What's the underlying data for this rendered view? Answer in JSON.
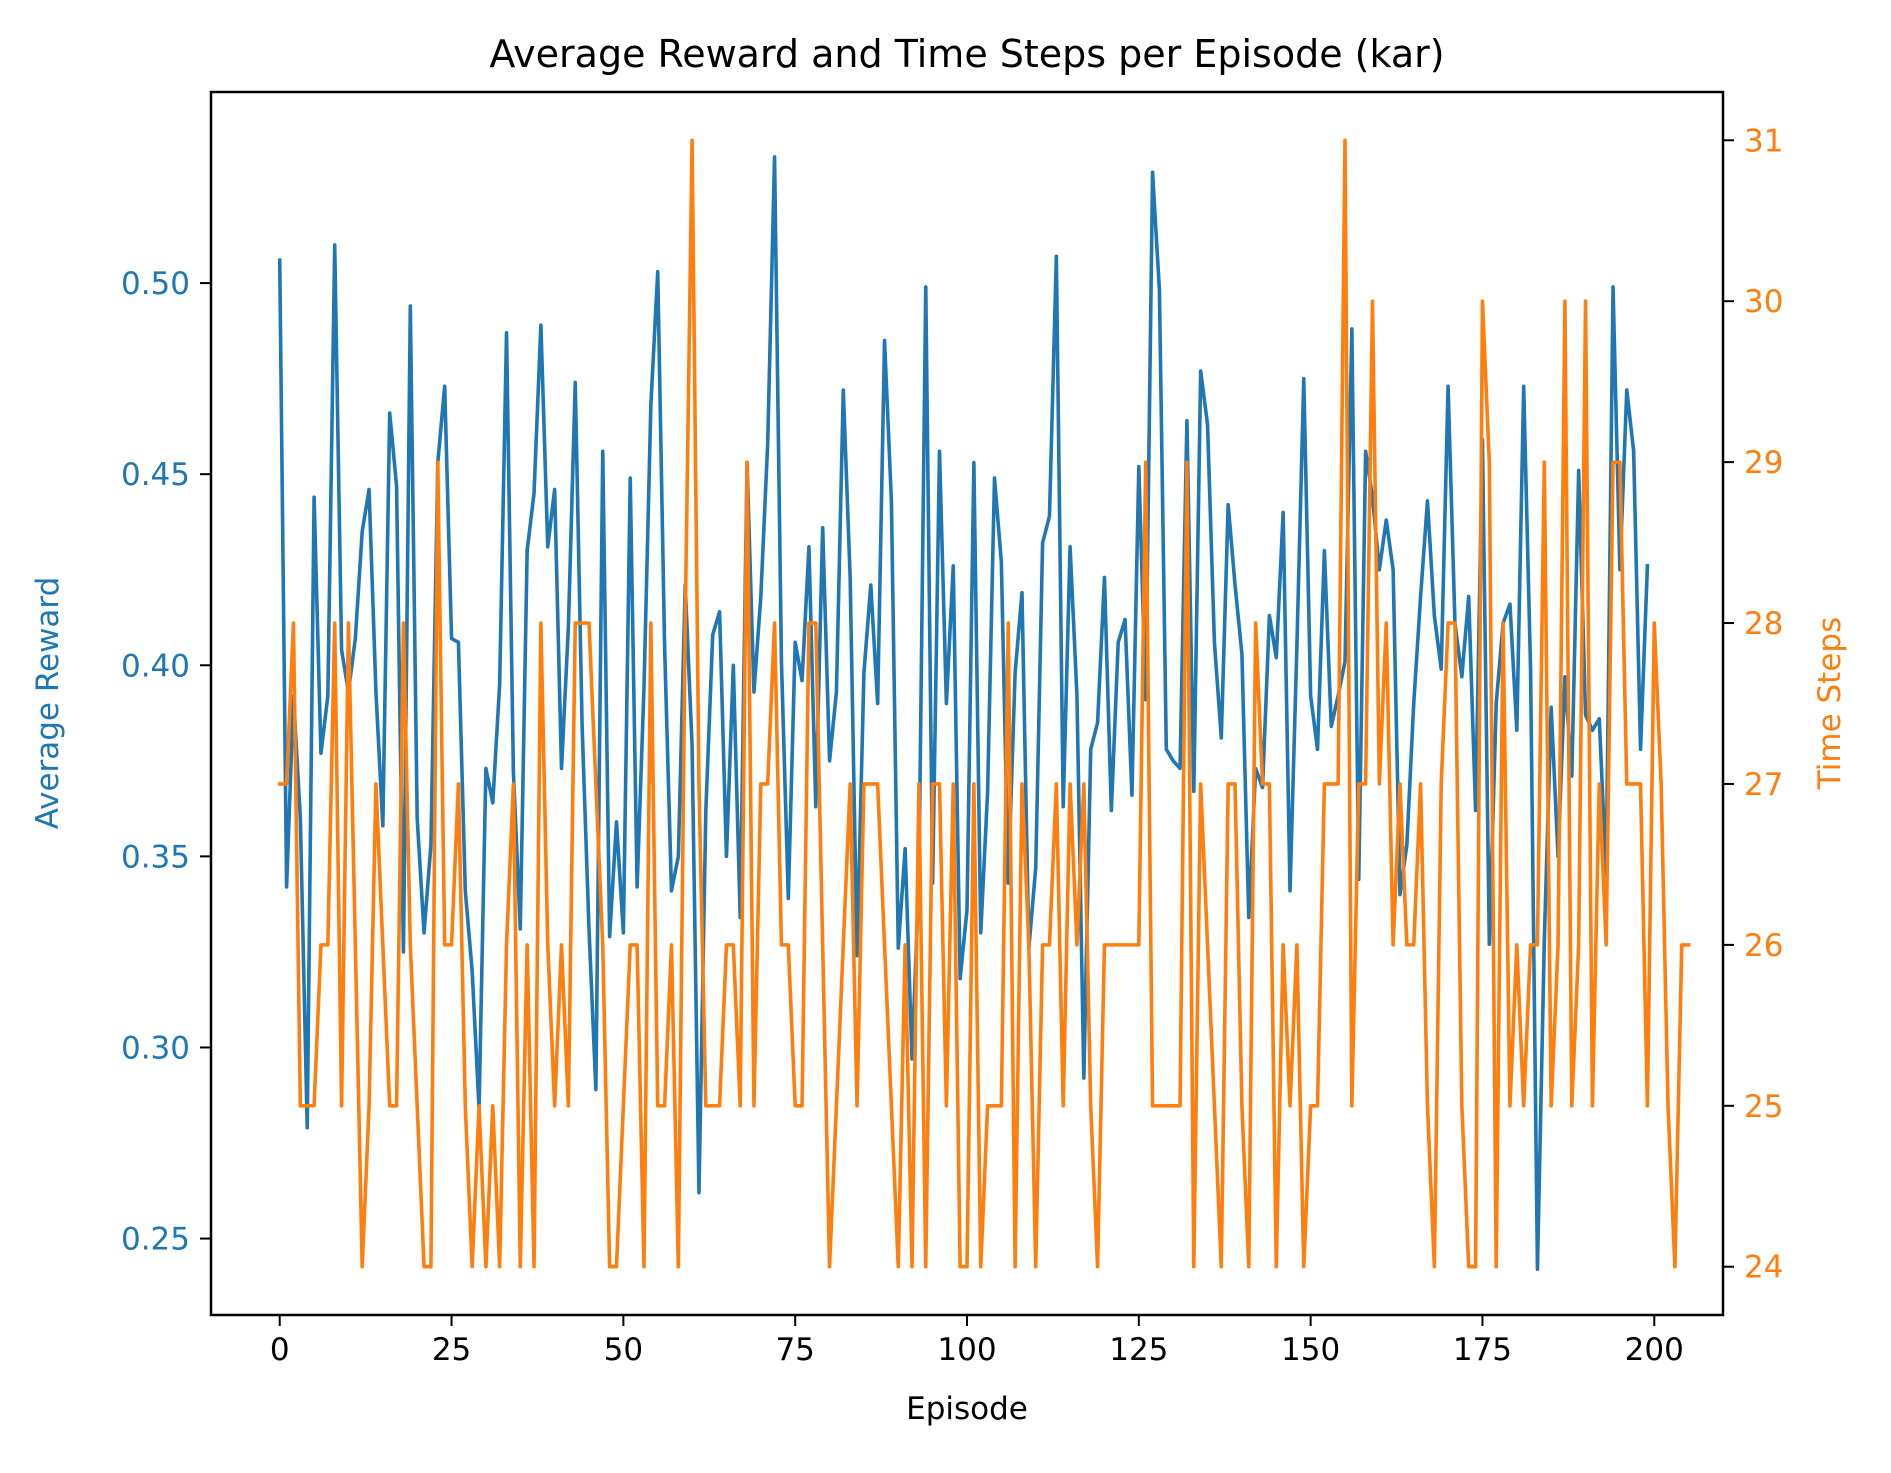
{
  "chart_data": {
    "type": "line",
    "title": "Average Reward and Time Steps per Episode (kar)",
    "xlabel": "Episode",
    "ylabel_left": "Average Reward",
    "ylabel_right": "Time Steps",
    "xlim": [
      -10,
      210
    ],
    "ylim_left": [
      0.23,
      0.55
    ],
    "ylim_right": [
      23.7,
      31.3
    ],
    "x_ticks": [
      0,
      25,
      50,
      75,
      100,
      125,
      150,
      175,
      200
    ],
    "x_tick_labels": [
      "0",
      "25",
      "50",
      "75",
      "100",
      "125",
      "150",
      "175",
      "200"
    ],
    "y_left_ticks": [
      0.25,
      0.3,
      0.35,
      0.4,
      0.45,
      0.5
    ],
    "y_left_tick_labels": [
      "0.25",
      "0.30",
      "0.35",
      "0.40",
      "0.45",
      "0.50"
    ],
    "y_right_ticks": [
      24,
      25,
      26,
      27,
      28,
      29,
      30,
      31
    ],
    "y_right_tick_labels": [
      "24",
      "25",
      "26",
      "27",
      "28",
      "29",
      "30",
      "31"
    ],
    "grid": false,
    "colors": {
      "reward": "#1f77b4",
      "steps": "#ff7f0e"
    },
    "x_start": 0,
    "series": [
      {
        "axis": "left",
        "color": "#1f77b4",
        "values": [
          0.506,
          0.342,
          0.392,
          0.36,
          0.279,
          0.444,
          0.377,
          0.392,
          0.51,
          0.404,
          0.393,
          0.407,
          0.435,
          0.446,
          0.393,
          0.358,
          0.466,
          0.447,
          0.325,
          0.494,
          0.36,
          0.33,
          0.353,
          0.453,
          0.473,
          0.407,
          0.406,
          0.341,
          0.32,
          0.284,
          0.373,
          0.364,
          0.395,
          0.487,
          0.372,
          0.331,
          0.43,
          0.445,
          0.489,
          0.431,
          0.446,
          0.373,
          0.41,
          0.474,
          0.384,
          0.331,
          0.289,
          0.456,
          0.329,
          0.359,
          0.33,
          0.449,
          0.342,
          0.394,
          0.468,
          0.503,
          0.405,
          0.341,
          0.35,
          0.421,
          0.379,
          0.262,
          0.362,
          0.408,
          0.414,
          0.35,
          0.4,
          0.334,
          0.453,
          0.393,
          0.418,
          0.458,
          0.533,
          0.401,
          0.339,
          0.406,
          0.396,
          0.431,
          0.363,
          0.436,
          0.375,
          0.393,
          0.472,
          0.423,
          0.324,
          0.398,
          0.421,
          0.39,
          0.485,
          0.443,
          0.326,
          0.352,
          0.297,
          0.344,
          0.499,
          0.343,
          0.456,
          0.39,
          0.426,
          0.318,
          0.336,
          0.453,
          0.33,
          0.367,
          0.449,
          0.427,
          0.343,
          0.398,
          0.419,
          0.326,
          0.347,
          0.432,
          0.439,
          0.507,
          0.363,
          0.431,
          0.392,
          0.292,
          0.378,
          0.385,
          0.423,
          0.362,
          0.406,
          0.412,
          0.366,
          0.452,
          0.391,
          0.529,
          0.498,
          0.378,
          0.375,
          0.373,
          0.464,
          0.367,
          0.477,
          0.463,
          0.406,
          0.381,
          0.442,
          0.421,
          0.403,
          0.334,
          0.373,
          0.368,
          0.413,
          0.402,
          0.44,
          0.341,
          0.405,
          0.475,
          0.392,
          0.378,
          0.43,
          0.384,
          0.392,
          0.401,
          0.488,
          0.344,
          0.456,
          0.444,
          0.425,
          0.438,
          0.425,
          0.34,
          0.353,
          0.39,
          0.418,
          0.443,
          0.413,
          0.399,
          0.473,
          0.411,
          0.397,
          0.418,
          0.362,
          0.459,
          0.327,
          0.39,
          0.411,
          0.416,
          0.383,
          0.473,
          0.399,
          0.242,
          0.328,
          0.389,
          0.35,
          0.397,
          0.371,
          0.451,
          0.387,
          0.383,
          0.386,
          0.345,
          0.499,
          0.425,
          0.472,
          0.456,
          0.378,
          0.426
        ]
      },
      {
        "axis": "right",
        "color": "#ff7f0e",
        "values": [
          27,
          27,
          28,
          25,
          25,
          25,
          26,
          26,
          28,
          25,
          28,
          26,
          24,
          25,
          27,
          26,
          25,
          25,
          28,
          26,
          25,
          24,
          24,
          29,
          26,
          26,
          27,
          25,
          24,
          25,
          24,
          25,
          24,
          26,
          27,
          24,
          26,
          24,
          28,
          26,
          25,
          26,
          25,
          28,
          28,
          28,
          27,
          26,
          24,
          24,
          25,
          26,
          26,
          24,
          28,
          25,
          25,
          26,
          24,
          28,
          31,
          27,
          25,
          25,
          25,
          26,
          26,
          25,
          29,
          25,
          27,
          27,
          28,
          26,
          26,
          25,
          25,
          28,
          28,
          26,
          24,
          25,
          26,
          27,
          25,
          27,
          27,
          27,
          26,
          25,
          24,
          26,
          24,
          27,
          24,
          27,
          27,
          25,
          27,
          24,
          24,
          27,
          24,
          25,
          25,
          25,
          28,
          24,
          27,
          26,
          24,
          26,
          26,
          27,
          25,
          27,
          26,
          27,
          25,
          24,
          26,
          26,
          26,
          26,
          26,
          26,
          29,
          25,
          25,
          25,
          25,
          25,
          29,
          24,
          27,
          26,
          25,
          24,
          27,
          27,
          25,
          24,
          28,
          27,
          27,
          24,
          26,
          25,
          26,
          24,
          25,
          25,
          27,
          27,
          27,
          31,
          25,
          27,
          27,
          30,
          27,
          28,
          26,
          27,
          26,
          26,
          27,
          25,
          24,
          27,
          28,
          28,
          25,
          24,
          24,
          30,
          29,
          24,
          28,
          25,
          26,
          25,
          26,
          26,
          29,
          25,
          26,
          30,
          25,
          26,
          30,
          25,
          27,
          26,
          29,
          29,
          27,
          27,
          27,
          25,
          28,
          27,
          25,
          24,
          26,
          26
        ]
      }
    ]
  }
}
